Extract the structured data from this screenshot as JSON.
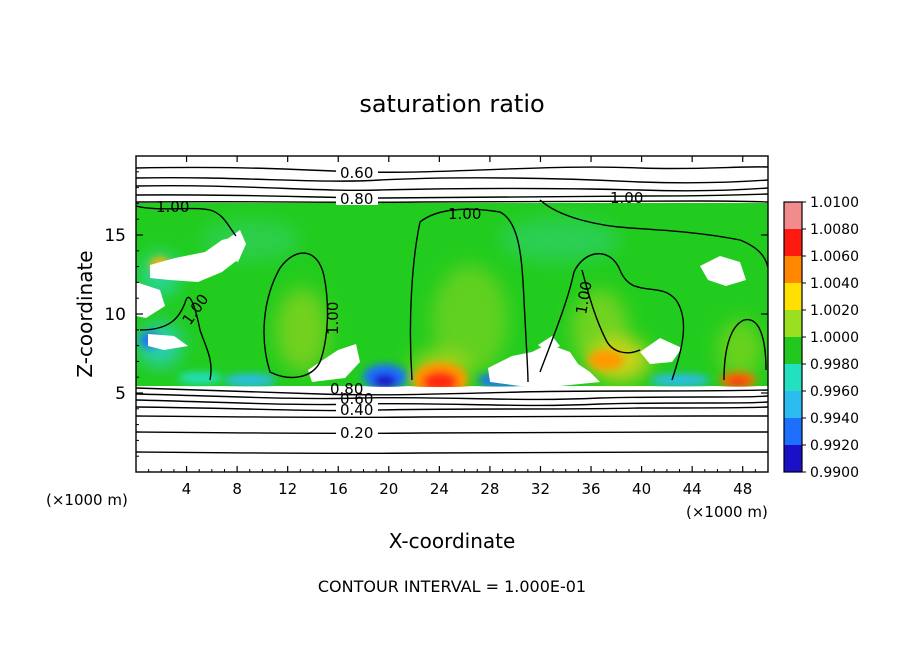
{
  "chart_data": {
    "type": "heatmap",
    "title": "saturation ratio",
    "xlabel": "X-coordinate",
    "ylabel": "Z-coordinate",
    "x_unit_left": "(×1000 m)",
    "x_unit_right": "(×1000 m)",
    "footer": "CONTOUR INTERVAL = 1.000E-01",
    "xlim": [
      0,
      50
    ],
    "ylim": [
      0,
      20
    ],
    "x_ticks": [
      4,
      8,
      12,
      16,
      20,
      24,
      28,
      32,
      36,
      40,
      44,
      48
    ],
    "y_ticks": [
      5,
      10,
      15
    ],
    "colorbar": {
      "ticks": [
        "0.9900",
        "0.9920",
        "0.9940",
        "0.9960",
        "0.9980",
        "1.0000",
        "1.0020",
        "1.0040",
        "1.0060",
        "1.0080",
        "1.0100"
      ],
      "colors": [
        "#7a1fa2",
        "#1a10c8",
        "#1f6fff",
        "#2bbcf0",
        "#22e0c0",
        "#22c820",
        "#9ae020",
        "#ffe000",
        "#ff8800",
        "#ff1a10",
        "#f08c8c"
      ]
    },
    "contour_labels": [
      "0.60",
      "0.80",
      "1.00",
      "1.00",
      "1.00",
      "1.00",
      "1.00",
      "1.00",
      "0.20",
      "0.40",
      "0.60",
      "0.80"
    ],
    "colors": {
      "background": "#22c820",
      "cloud_gap": "#ffffff",
      "contour": "#000000"
    }
  }
}
